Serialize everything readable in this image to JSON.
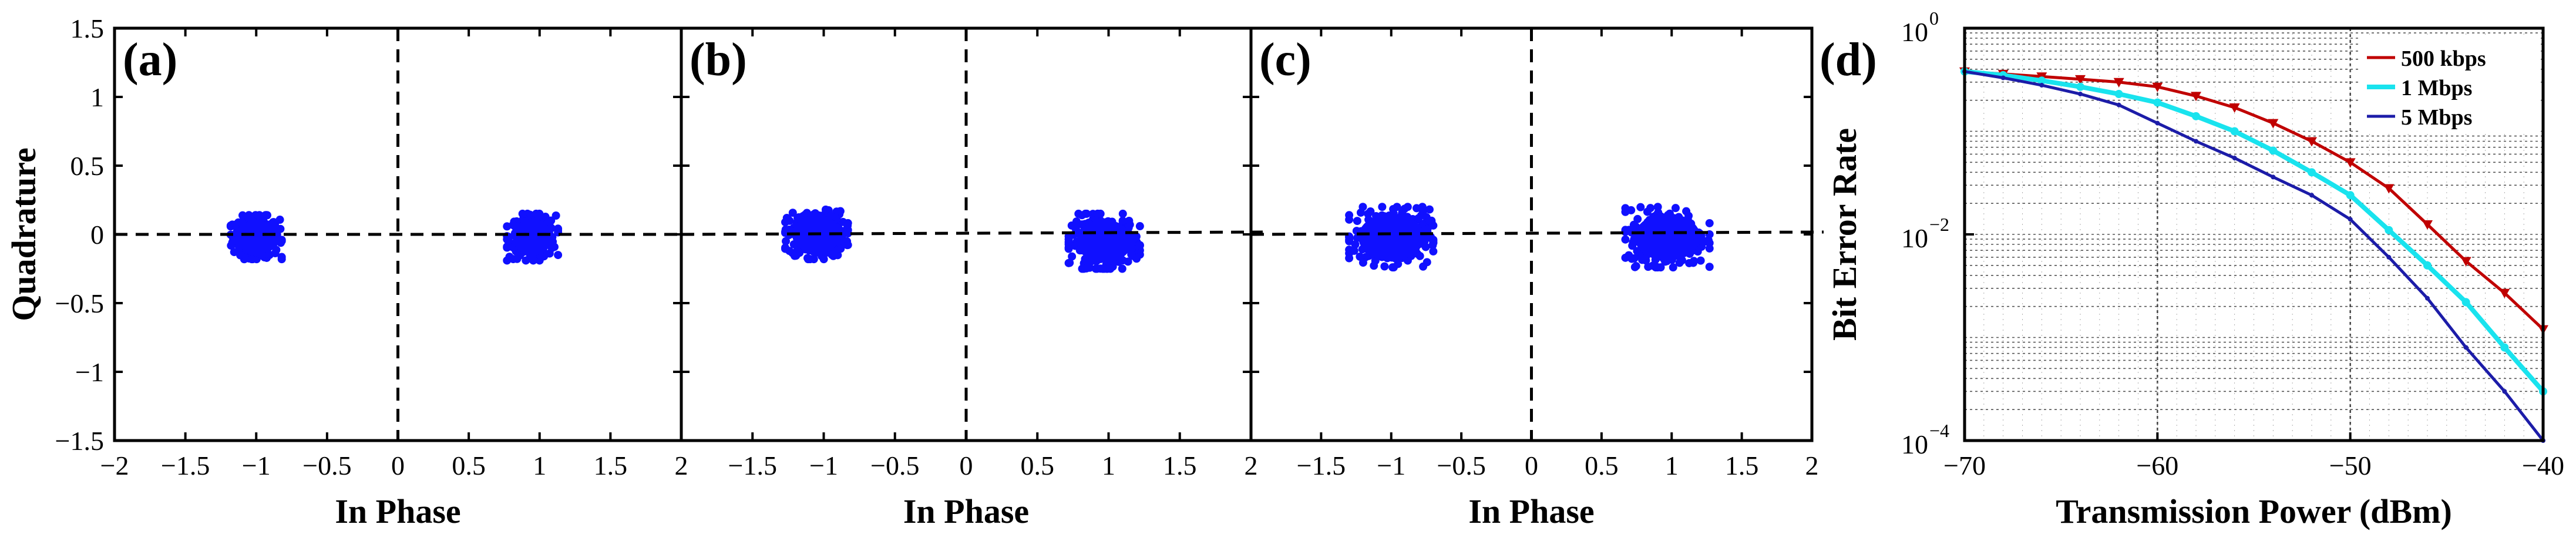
{
  "colors": {
    "points": "#1010ff",
    "series_500k": "#c00000",
    "series_1M": "#19e3ee",
    "series_5M": "#1c1ca8"
  },
  "chart_data": [
    {
      "panel": "(a)",
      "type": "scatter",
      "xlabel": "In Phase",
      "ylabel": "Quadrature",
      "xlim": [
        -2,
        2
      ],
      "ylim": [
        -1.5,
        1.5
      ],
      "xticks": [
        "−2",
        "−1.5",
        "−1",
        "−0.5",
        "0",
        "0.5",
        "1",
        "1.5",
        "2"
      ],
      "yticks": [
        "−1.5",
        "−1",
        "−0.5",
        "0",
        "0.5",
        "1",
        "1.5"
      ],
      "clusters": [
        {
          "center": [
            -1.0,
            -0.02
          ],
          "spread": [
            0.18,
            0.16
          ]
        },
        {
          "center": [
            0.95,
            -0.02
          ],
          "spread": [
            0.18,
            0.17
          ]
        }
      ],
      "reference_lines": "dashed axes at x=0 and y=0"
    },
    {
      "panel": "(b)",
      "type": "scatter",
      "xlabel": "In Phase",
      "xlim": [
        -2,
        2
      ],
      "ylim": [
        -1.5,
        1.5
      ],
      "xticks": [
        "−2",
        "−1.5",
        "−1",
        "−0.5",
        "0",
        "0.5",
        "1",
        "1.5",
        "2"
      ],
      "clusters": [
        {
          "center": [
            -1.05,
            0.0
          ],
          "spread": [
            0.22,
            0.18
          ]
        },
        {
          "center": [
            0.97,
            -0.05
          ],
          "spread": [
            0.25,
            0.2
          ]
        }
      ],
      "reference_lines": "dashed axes at x=0 and y=0"
    },
    {
      "panel": "(c)",
      "type": "scatter",
      "xlabel": "In Phase",
      "xlim": [
        -2,
        2
      ],
      "ylim": [
        -1.5,
        1.5
      ],
      "xticks": [
        "−2",
        "−1.5",
        "−1",
        "−0.5",
        "0",
        "0.5",
        "1",
        "1.5",
        "2"
      ],
      "clusters": [
        {
          "center": [
            -1.0,
            -0.02
          ],
          "spread": [
            0.3,
            0.22
          ]
        },
        {
          "center": [
            0.97,
            -0.02
          ],
          "spread": [
            0.3,
            0.22
          ]
        }
      ],
      "reference_lines": "dashed axes at x=0 and y=0"
    },
    {
      "panel": "(d)",
      "type": "line",
      "xlabel": "Transmission Power (dBm)",
      "ylabel": "Bit Error Rate",
      "xlim": [
        -70,
        -40
      ],
      "ylim": [
        0.0001,
        1
      ],
      "yscale": "log",
      "xticks": [
        "−70",
        "−60",
        "−50",
        "−40"
      ],
      "yticks": [
        {
          "base": "10",
          "exp": "0"
        },
        {
          "base": "10",
          "exp": "−2"
        },
        {
          "base": "10",
          "exp": "−4"
        }
      ],
      "grid": true,
      "legend_position": "top-right",
      "series": [
        {
          "name": "500 kbps",
          "x": [
            -70,
            -68,
            -66,
            -64,
            -62,
            -60,
            -58,
            -56,
            -54,
            -52,
            -50,
            -48,
            -46,
            -44,
            -42,
            -40
          ],
          "y": [
            0.38,
            0.36,
            0.34,
            0.32,
            0.3,
            0.27,
            0.22,
            0.17,
            0.12,
            0.08,
            0.05,
            0.028,
            0.0125,
            0.0055,
            0.0027,
            0.0012
          ]
        },
        {
          "name": "1 Mbps",
          "x": [
            -70,
            -68,
            -66,
            -64,
            -62,
            -60,
            -58,
            -56,
            -54,
            -52,
            -50,
            -48,
            -46,
            -44,
            -42,
            -40
          ],
          "y": [
            0.38,
            0.35,
            0.31,
            0.27,
            0.23,
            0.19,
            0.14,
            0.1,
            0.065,
            0.04,
            0.024,
            0.011,
            0.005,
            0.0022,
            0.0008,
            0.0003
          ]
        },
        {
          "name": "5 Mbps",
          "x": [
            -70,
            -68,
            -66,
            -64,
            -62,
            -60,
            -58,
            -56,
            -54,
            -52,
            -50,
            -48,
            -46,
            -44,
            -42,
            -40
          ],
          "y": [
            0.38,
            0.33,
            0.28,
            0.23,
            0.18,
            0.12,
            0.08,
            0.055,
            0.036,
            0.024,
            0.014,
            0.006,
            0.0024,
            0.0008,
            0.0003,
            0.0001
          ]
        }
      ]
    }
  ]
}
